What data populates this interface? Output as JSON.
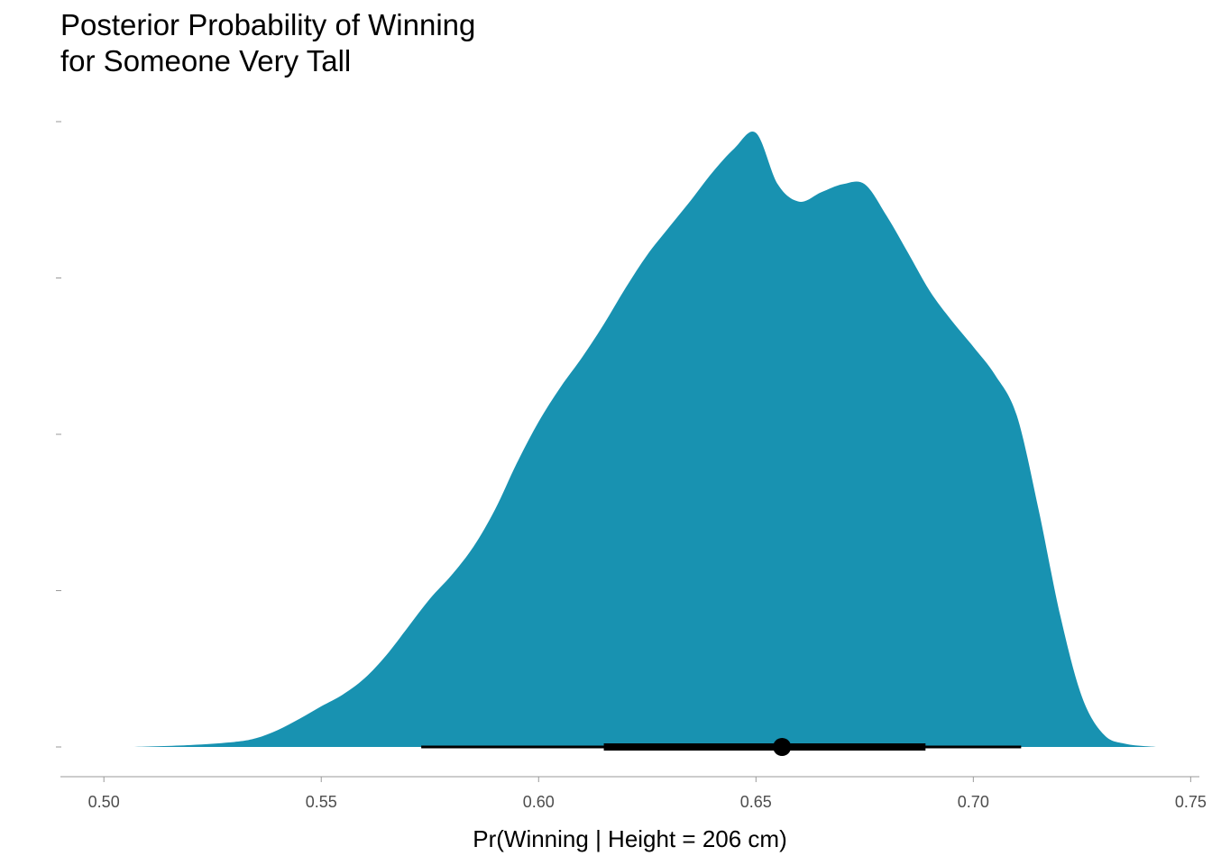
{
  "chart_data": {
    "type": "area",
    "title_lines": [
      "Posterior Probability of Winning",
      "for Someone Very Tall"
    ],
    "xlabel": "Pr(Winning | Height = 206 cm)",
    "ylabel": "",
    "xlim": [
      0.49,
      0.752
    ],
    "ylim": [
      0,
      1.0
    ],
    "x_ticks": [
      "0.50",
      "0.55",
      "0.60",
      "0.65",
      "0.70",
      "0.75"
    ],
    "x_tick_values": [
      0.5,
      0.55,
      0.6,
      0.65,
      0.7,
      0.75
    ],
    "y_tick_values": [
      0,
      0.25,
      0.5,
      0.75,
      1.0
    ],
    "fill_color": "#1892b1",
    "density": {
      "x": [
        0.507,
        0.52,
        0.53,
        0.535,
        0.54,
        0.545,
        0.55,
        0.555,
        0.56,
        0.565,
        0.57,
        0.575,
        0.58,
        0.585,
        0.59,
        0.595,
        0.6,
        0.605,
        0.61,
        0.615,
        0.62,
        0.625,
        0.63,
        0.635,
        0.64,
        0.645,
        0.65,
        0.655,
        0.66,
        0.665,
        0.67,
        0.675,
        0.68,
        0.685,
        0.69,
        0.695,
        0.7,
        0.705,
        0.71,
        0.715,
        0.72,
        0.725,
        0.73,
        0.735,
        0.742
      ],
      "y": [
        0.0,
        0.003,
        0.008,
        0.014,
        0.027,
        0.045,
        0.065,
        0.084,
        0.11,
        0.147,
        0.192,
        0.237,
        0.275,
        0.32,
        0.38,
        0.454,
        0.52,
        0.575,
        0.623,
        0.676,
        0.734,
        0.787,
        0.831,
        0.874,
        0.919,
        0.957,
        0.982,
        0.9,
        0.872,
        0.887,
        0.9,
        0.9,
        0.85,
        0.79,
        0.729,
        0.682,
        0.64,
        0.595,
        0.53,
        0.38,
        0.21,
        0.08,
        0.02,
        0.005,
        0.0
      ]
    },
    "point_estimate": 0.656,
    "interval_66": [
      0.615,
      0.689
    ],
    "interval_95": [
      0.573,
      0.711
    ],
    "interval_color": "#000000",
    "grid": false
  }
}
